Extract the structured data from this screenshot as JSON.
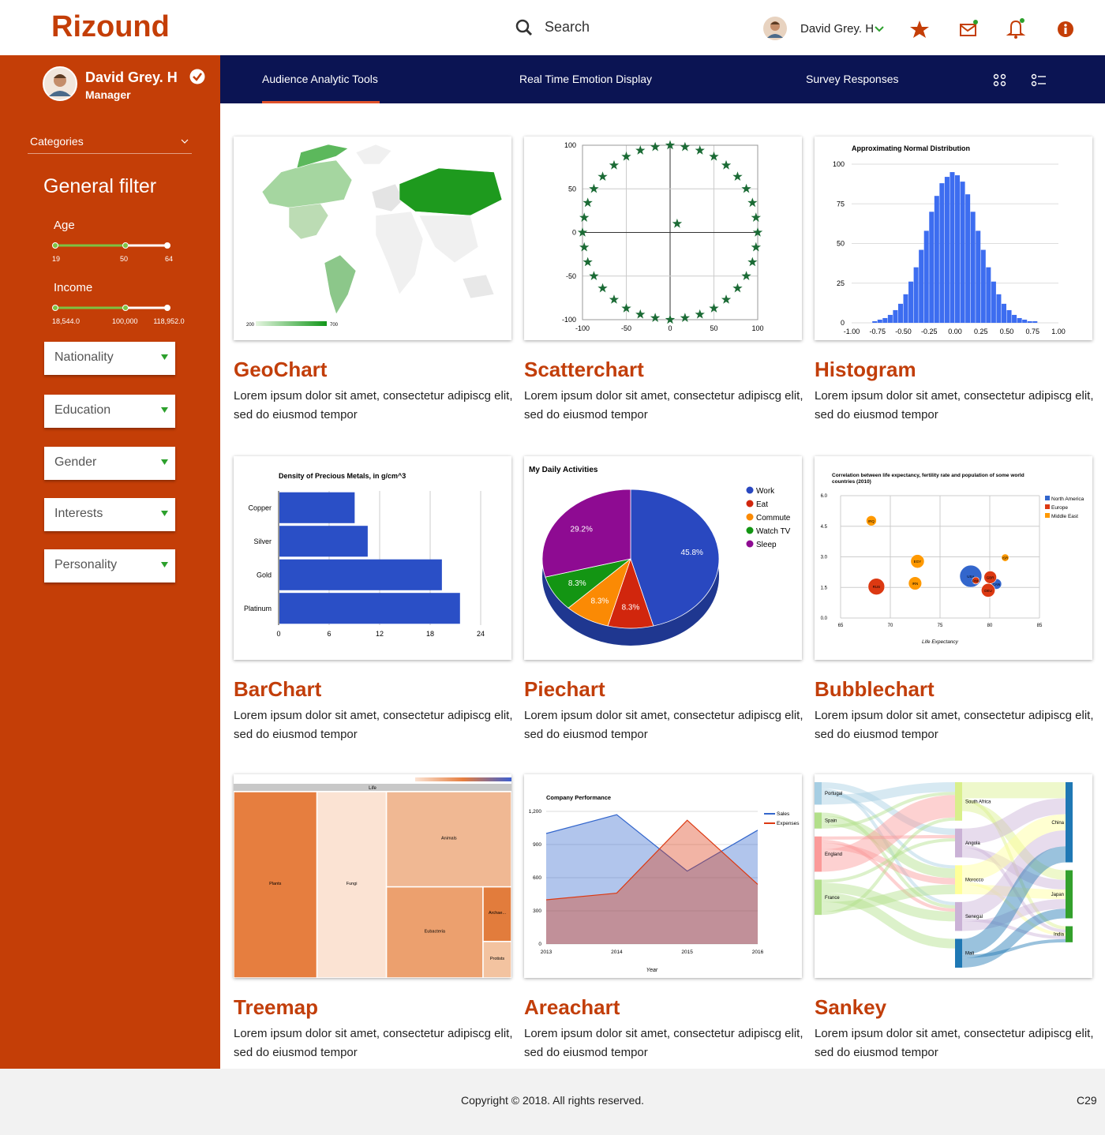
{
  "header": {
    "logo": "Rizound",
    "search": "Search",
    "user": "David Grey. H"
  },
  "sidebar": {
    "profile": {
      "name": "David Grey. H",
      "role": "Manager"
    },
    "categories": "Categories",
    "filter_title": "General filter",
    "sliders": [
      {
        "label": "Age",
        "min": "19",
        "mid": "50",
        "max": "64"
      },
      {
        "label": "Income",
        "min": "18,544.0",
        "mid": "100,000",
        "max": "118,952.0"
      }
    ],
    "dropdowns": [
      "Nationality",
      "Education",
      "Gender",
      "Interests",
      "Personality"
    ]
  },
  "tabs": [
    "Audience Analytic Tools",
    "Real Time Emotion Display",
    "Survey Responses"
  ],
  "cards": [
    {
      "title": "GeoChart",
      "description": "Lorem ipsum dolor sit amet, consectetur adipiscg elit, sed do eiusmod tempor",
      "chart_data": {
        "type": "geo",
        "color_axis": {
          "min": 200,
          "max": 700,
          "colors": [
            "#e5f5e0",
            "#109618"
          ]
        }
      }
    },
    {
      "title": "Scatterchart",
      "description": "Lorem ipsum dolor sit amet, consectetur adipiscg elit, sed do eiusmod tempor",
      "chart_data": {
        "type": "scatter",
        "color": "#1b6b35",
        "xlim": [
          -100,
          100
        ],
        "ylim": [
          -100,
          100
        ],
        "xticks": [
          -100,
          -50,
          0,
          50,
          100
        ],
        "yticks": [
          -100,
          -50,
          0,
          50,
          100
        ],
        "x": [
          100,
          98,
          94,
          87,
          77,
          64,
          50,
          34,
          17,
          0,
          -17,
          -34,
          -50,
          -64,
          -77,
          -87,
          -94,
          -98,
          -100,
          -98,
          -94,
          -87,
          -77,
          -64,
          -50,
          -34,
          -17,
          0,
          17,
          34,
          50,
          64,
          77,
          87,
          94,
          98,
          8
        ],
        "y": [
          0,
          17,
          34,
          50,
          64,
          77,
          87,
          94,
          98,
          100,
          98,
          94,
          87,
          77,
          64,
          50,
          34,
          17,
          0,
          -17,
          -34,
          -50,
          -64,
          -77,
          -87,
          -94,
          -98,
          -100,
          -98,
          -94,
          -87,
          -77,
          -64,
          -50,
          -34,
          -17,
          10
        ]
      }
    },
    {
      "title": "Histogram",
      "description": "Lorem ipsum dolor sit amet, consectetur adipiscg elit, sed do eiusmod tempor",
      "chart_data": {
        "type": "histogram",
        "title": "Approximating Normal Distribution",
        "color": "#3d6df0",
        "xlim": [
          -1,
          1
        ],
        "ylim": [
          0,
          100
        ],
        "xticks": [
          {
            "value": -1,
            "label": "-1.00"
          },
          {
            "value": -0.75,
            "label": "-0.75"
          },
          {
            "value": -0.5,
            "label": "-0.50"
          },
          {
            "value": -0.25,
            "label": "-0.25"
          },
          {
            "value": 0,
            "label": "0.00"
          },
          {
            "value": 0.25,
            "label": "0.25"
          },
          {
            "value": 0.5,
            "label": "0.50"
          },
          {
            "value": 0.75,
            "label": "0.75"
          },
          {
            "value": 1,
            "label": "1.00"
          }
        ],
        "yticks": [
          0,
          25,
          50,
          75,
          100
        ],
        "bins": [
          -0.8,
          -0.75,
          -0.7,
          -0.65,
          -0.6,
          -0.55,
          -0.5,
          -0.45,
          -0.4,
          -0.35,
          -0.3,
          -0.25,
          -0.2,
          -0.15,
          -0.1,
          -0.05,
          0,
          0.05,
          0.1,
          0.15,
          0.2,
          0.25,
          0.3,
          0.35,
          0.4,
          0.45,
          0.5,
          0.55,
          0.6,
          0.65,
          0.7,
          0.75,
          0.8
        ],
        "counts": [
          1,
          2,
          3,
          5,
          8,
          12,
          18,
          26,
          35,
          46,
          58,
          70,
          80,
          88,
          92,
          95,
          93,
          89,
          81,
          70,
          58,
          46,
          35,
          26,
          18,
          12,
          8,
          5,
          3,
          2,
          1,
          1
        ]
      }
    },
    {
      "title": "BarChart",
      "description": "Lorem ipsum dolor sit amet, consectetur adipiscg elit, sed do eiusmod tempor",
      "chart_data": {
        "type": "hbar",
        "title": "Density of Precious Metals, in g/cm^3",
        "color": "#2a4fc6",
        "categories": [
          "Copper",
          "Silver",
          "Gold",
          "Platinum"
        ],
        "values": [
          8.94,
          10.49,
          19.3,
          21.45
        ],
        "xlim": [
          0,
          24
        ],
        "xticks": [
          0,
          6,
          12,
          18,
          24
        ]
      }
    },
    {
      "title": "Piechart",
      "description": "Lorem ipsum dolor sit amet, consectetur adipiscg elit, sed do eiusmod tempor",
      "chart_data": {
        "type": "pie",
        "title": "My Daily Activities",
        "categories": [
          "Work",
          "Eat",
          "Commute",
          "Watch TV",
          "Sleep"
        ],
        "values": [
          45.8,
          8.3,
          8.3,
          8.3,
          29.2
        ],
        "value_labels": [
          "45.8%",
          "8.3%",
          "8.3%",
          "8.3%",
          "29.2%"
        ],
        "colors": [
          "#2948c0",
          "#d1260d",
          "#fb8a04",
          "#139513",
          "#8e0b92"
        ]
      }
    },
    {
      "title": "Bubblechart",
      "description": "Lorem ipsum dolor sit amet, consectetur adipiscg elit, sed do eiusmod tempor",
      "chart_data": {
        "type": "bubble",
        "title": "Correlation between life expectancy, fertility rate and population of some world countries (2010)",
        "x_label": "Life Expectancy",
        "xlim": [
          65,
          85
        ],
        "ylim": [
          0,
          6
        ],
        "xticks": [
          65,
          70,
          75,
          80,
          85
        ],
        "yticks": [
          {
            "value": 0,
            "label": "0.0"
          },
          {
            "value": 1.5,
            "label": "1.5"
          },
          {
            "value": 3,
            "label": "3.0"
          },
          {
            "value": 4.5,
            "label": "4.5"
          },
          {
            "value": 6,
            "label": "6.0"
          }
        ],
        "series": [
          {
            "name": "North America",
            "color": "#3366cc",
            "labels": [
              "CAN",
              "USA"
            ],
            "x": [
              80.66,
              78.09
            ],
            "values": [
              1.67,
              2.05
            ],
            "sizes": [
              33739900,
              307007000
            ]
          },
          {
            "name": "Europe",
            "color": "#dc3912",
            "labels": [
              "DEU",
              "DNK",
              "GBR",
              "RUS"
            ],
            "x": [
              79.84,
              78.6,
              80.05,
              68.6
            ],
            "values": [
              1.36,
              1.84,
              2,
              1.54
            ],
            "sizes": [
              81902307,
              5523095,
              61801570,
              141850000
            ]
          },
          {
            "name": "Middle East",
            "color": "#ff9900",
            "labels": [
              "EGY",
              "IRN",
              "IRQ",
              "ISR"
            ],
            "x": [
              72.73,
              72.49,
              68.09,
              81.55
            ],
            "values": [
              2.78,
              1.7,
              4.77,
              2.96
            ],
            "sizes": [
              79716203,
              73137148,
              31090763,
              7485600
            ]
          }
        ]
      }
    },
    {
      "title": "Treemap",
      "description": "Lorem ipsum dolor sit amet, consectetur adipiscg elit, sed do eiusmod tempor",
      "chart_data": {
        "type": "treemap",
        "root": "Life",
        "categories": [
          "Plants",
          "Fungi",
          "Animals",
          "Eubacteria",
          "Archae...",
          "Protists"
        ],
        "values": [
          30,
          25,
          23,
          17,
          3,
          2
        ],
        "colors": [
          "#e67e3f",
          "#fbe3d3",
          "#f0b893",
          "#eca06e",
          "#e27c3c",
          "#f3c3a0"
        ]
      }
    },
    {
      "title": "Areachart",
      "description": "Lorem ipsum dolor sit amet, consectetur adipiscg elit, sed do eiusmod tempor",
      "chart_data": {
        "type": "area",
        "title": "Company Performance",
        "x_label": "Year",
        "categories": [
          "2013",
          "2014",
          "2015",
          "2016"
        ],
        "ylim": [
          0,
          1200
        ],
        "yticks": [
          0,
          300,
          600,
          900,
          {
            "value": 1200,
            "label": "1,200"
          }
        ],
        "series": [
          {
            "name": "Sales",
            "color": "#3366cc",
            "values": [
              1000,
              1170,
              660,
              1030
            ]
          },
          {
            "name": "Expenses",
            "color": "#dc3912",
            "values": [
              400,
              460,
              1120,
              540
            ]
          }
        ]
      }
    },
    {
      "title": "Sankey",
      "description": "Lorem ipsum dolor sit amet, consectetur adipiscg elit, sed do eiusmod tempor",
      "chart_data": {
        "type": "sankey",
        "nodes": [
          [
            "Portugal",
            "Spain",
            "England",
            "France"
          ],
          [
            "South Africa",
            "Angola",
            "Morocco",
            "Senegal",
            "Mali"
          ],
          [
            "China",
            "Japan",
            "India"
          ]
        ],
        "node_colors": [
          [
            "#a6cee3",
            "#b2df8a",
            "#fb9a99",
            "#b2df8a"
          ],
          [
            "#d9ef8b",
            "#cab2d6",
            "#ffff99",
            "#cab2d6",
            "#1f78b4"
          ],
          [
            "#1f78b4",
            "#33a02c",
            "#33a02c"
          ]
        ],
        "links": [
          {
            "source": "Portugal",
            "target": "Angola",
            "value": 2
          },
          {
            "source": "Portugal",
            "target": "Senegal",
            "value": 1
          },
          {
            "source": "Portugal",
            "target": "Morocco",
            "value": 1
          },
          {
            "source": "Portugal",
            "target": "South Africa",
            "value": 3
          },
          {
            "source": "Spain",
            "target": "Senegal",
            "value": 1
          },
          {
            "source": "Spain",
            "target": "Morocco",
            "value": 3
          },
          {
            "source": "Spain",
            "target": "South Africa",
            "value": 1
          },
          {
            "source": "England",
            "target": "Angola",
            "value": 1
          },
          {
            "source": "England",
            "target": "Senegal",
            "value": 1
          },
          {
            "source": "England",
            "target": "Morocco",
            "value": 2
          },
          {
            "source": "England",
            "target": "South Africa",
            "value": 7
          },
          {
            "source": "France",
            "target": "Angola",
            "value": 1
          },
          {
            "source": "France",
            "target": "Senegal",
            "value": 3
          },
          {
            "source": "France",
            "target": "Mali",
            "value": 3
          },
          {
            "source": "France",
            "target": "Morocco",
            "value": 3
          },
          {
            "source": "France",
            "target": "South Africa",
            "value": 1
          },
          {
            "source": "South Africa",
            "target": "China",
            "value": 5
          },
          {
            "source": "South Africa",
            "target": "India",
            "value": 1
          },
          {
            "source": "South Africa",
            "target": "Japan",
            "value": 3
          },
          {
            "source": "Angola",
            "target": "China",
            "value": 5
          },
          {
            "source": "Angola",
            "target": "India",
            "value": 1
          },
          {
            "source": "Angola",
            "target": "Japan",
            "value": 3
          },
          {
            "source": "Morocco",
            "target": "China",
            "value": 5
          },
          {
            "source": "Morocco",
            "target": "India",
            "value": 1
          },
          {
            "source": "Morocco",
            "target": "Japan",
            "value": 3
          },
          {
            "source": "Senegal",
            "target": "China",
            "value": 5
          },
          {
            "source": "Senegal",
            "target": "India",
            "value": 1
          },
          {
            "source": "Senegal",
            "target": "Japan",
            "value": 3
          },
          {
            "source": "Mali",
            "target": "China",
            "value": 5
          },
          {
            "source": "Mali",
            "target": "India",
            "value": 1
          },
          {
            "source": "Mali",
            "target": "Japan",
            "value": 3
          }
        ]
      }
    }
  ],
  "footer": {
    "copyright": "Copyright © 2018. All rights reserved.",
    "code": "C29"
  }
}
